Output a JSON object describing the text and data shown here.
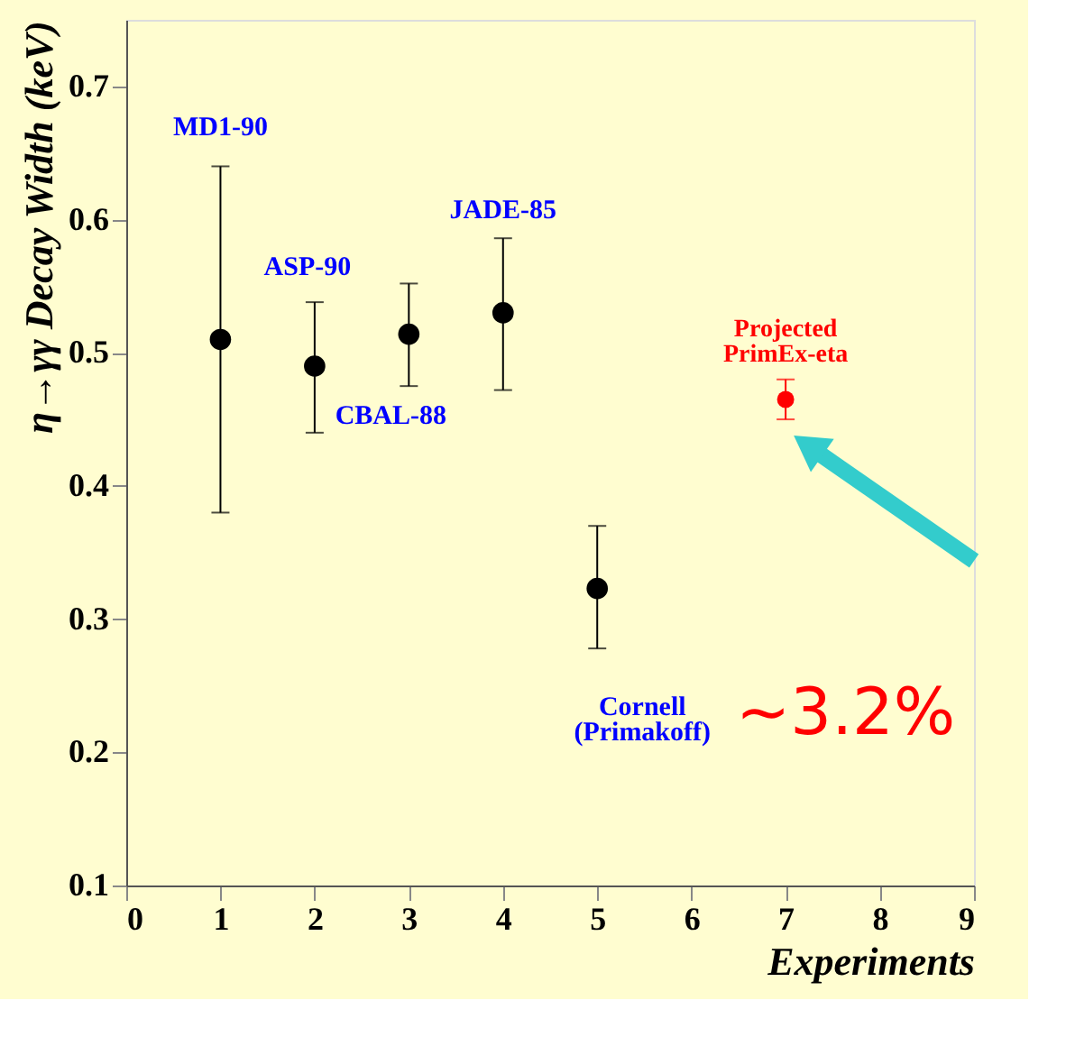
{
  "chart_data": {
    "type": "scatter",
    "xlabel": "Experiments",
    "ylabel": "η→γγ Decay Width (keV)",
    "xlim": [
      0,
      9
    ],
    "xticks": [
      0,
      1,
      2,
      3,
      4,
      5,
      6,
      7,
      8,
      9
    ],
    "ylim": [
      0.1,
      0.75
    ],
    "yticks": [
      0.1,
      0.2,
      0.3,
      0.4,
      0.5,
      0.6,
      0.7
    ],
    "grid": false,
    "marker": "circle",
    "series": [
      {
        "color": "#000000",
        "x": [
          1,
          2,
          3,
          4,
          5
        ],
        "values": [
          0.51,
          0.49,
          0.514,
          0.53,
          0.323
        ],
        "errors": [
          [
            0.38,
            0.64
          ],
          [
            0.44,
            0.538
          ],
          [
            0.475,
            0.552
          ],
          [
            0.472,
            0.586
          ],
          [
            0.278,
            0.37
          ]
        ]
      },
      {
        "color": "#ff0000",
        "x": [
          7
        ],
        "values": [
          0.465
        ],
        "errors": [
          [
            0.45,
            0.48
          ]
        ]
      }
    ],
    "annotations": [
      {
        "text": "MD1-90",
        "x": 1,
        "y": 0.64
      },
      {
        "text": "ASP-90",
        "x": 2,
        "y": 0.538
      },
      {
        "text": "CBAL-88",
        "x": 3,
        "y": 0.475
      },
      {
        "text": "JADE-85",
        "x": 4,
        "y": 0.586
      },
      {
        "text": "Cornell\n(Primakoff)",
        "x": 5,
        "y": 0.278
      },
      {
        "text": "Projected\nPrimEx-eta",
        "x": 7,
        "y": 0.48
      },
      "~3.2%"
    ]
  }
}
